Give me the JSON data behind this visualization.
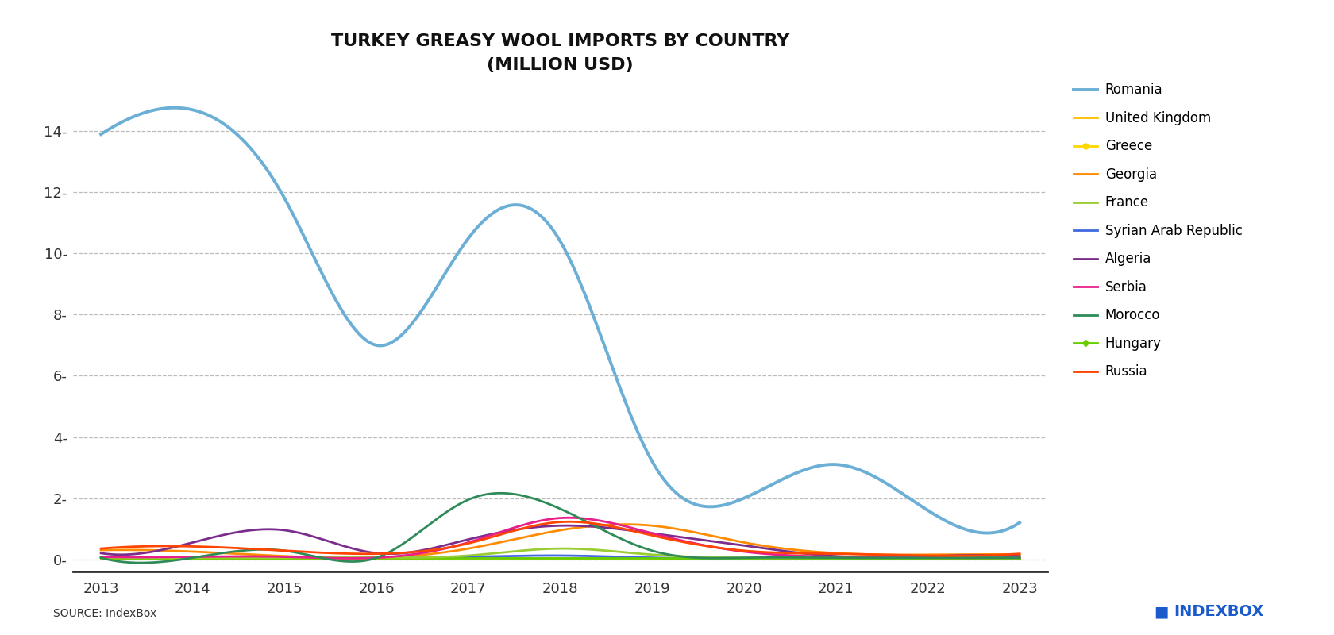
{
  "title_line1": "TURKEY GREASY WOOL IMPORTS BY COUNTRY",
  "title_line2": "(MILLION USD)",
  "years": [
    2013,
    2014,
    2015,
    2016,
    2017,
    2018,
    2019,
    2020,
    2021,
    2022,
    2023
  ],
  "series": {
    "Romania": {
      "color": "#6BAED6",
      "linewidth": 2.8,
      "zorder": 5,
      "values": [
        13.9,
        14.7,
        11.8,
        7.0,
        10.5,
        10.4,
        3.2,
        2.0,
        3.1,
        1.6,
        1.2
      ]
    },
    "United Kingdom": {
      "color": "#FFC000",
      "linewidth": 2.0,
      "zorder": 2,
      "values": [
        0.03,
        0.03,
        0.03,
        0.03,
        0.03,
        0.03,
        0.03,
        0.03,
        0.03,
        0.03,
        0.03
      ]
    },
    "Greece": {
      "color": "#FFD700",
      "linewidth": 2.0,
      "zorder": 2,
      "marker": "o",
      "markersize": 5,
      "values": [
        0.04,
        0.04,
        0.04,
        0.04,
        0.04,
        0.04,
        0.04,
        0.04,
        0.04,
        0.04,
        0.04
      ]
    },
    "Georgia": {
      "color": "#FF8C00",
      "linewidth": 2.0,
      "zorder": 3,
      "values": [
        0.3,
        0.25,
        0.1,
        0.05,
        0.35,
        0.95,
        1.1,
        0.55,
        0.2,
        0.15,
        0.15
      ]
    },
    "France": {
      "color": "#9ACD32",
      "linewidth": 2.0,
      "zorder": 3,
      "values": [
        0.05,
        0.05,
        0.05,
        0.05,
        0.12,
        0.35,
        0.15,
        0.05,
        0.05,
        0.05,
        0.05
      ]
    },
    "Syrian Arab Republic": {
      "color": "#4169E1",
      "linewidth": 2.0,
      "zorder": 2,
      "values": [
        0.08,
        0.05,
        0.05,
        0.05,
        0.08,
        0.12,
        0.05,
        0.02,
        0.02,
        0.02,
        0.02
      ]
    },
    "Algeria": {
      "color": "#7B2D8B",
      "linewidth": 2.0,
      "zorder": 3,
      "values": [
        0.2,
        0.55,
        0.95,
        0.2,
        0.65,
        1.1,
        0.85,
        0.45,
        0.1,
        0.1,
        0.1
      ]
    },
    "Serbia": {
      "color": "#E91E8C",
      "linewidth": 2.0,
      "zorder": 3,
      "values": [
        0.08,
        0.08,
        0.08,
        0.05,
        0.55,
        1.35,
        0.85,
        0.25,
        0.08,
        0.05,
        0.05
      ]
    },
    "Morocco": {
      "color": "#2E8B57",
      "linewidth": 2.0,
      "zorder": 3,
      "values": [
        0.05,
        0.05,
        0.28,
        0.05,
        1.95,
        1.65,
        0.28,
        0.05,
        0.05,
        0.05,
        0.05
      ]
    },
    "Hungary": {
      "color": "#66CD00",
      "linewidth": 2.0,
      "zorder": 2,
      "marker": "D",
      "markersize": 4,
      "values": [
        0.03,
        0.03,
        0.03,
        0.03,
        0.03,
        0.03,
        0.03,
        0.03,
        0.03,
        0.03,
        0.03
      ]
    },
    "Russia": {
      "color": "#FF4500",
      "linewidth": 2.0,
      "zorder": 3,
      "values": [
        0.35,
        0.42,
        0.28,
        0.18,
        0.52,
        1.22,
        0.78,
        0.28,
        0.18,
        0.12,
        0.18
      ]
    }
  },
  "ylim": [
    -0.4,
    15.8
  ],
  "yticks": [
    0,
    2,
    4,
    6,
    8,
    10,
    12,
    14
  ],
  "xlim": [
    2012.7,
    2023.3
  ],
  "background_color": "#FFFFFF",
  "grid_color": "#BBBBBB",
  "source_text": "SOURCE: IndexBox",
  "legend_fontsize": 12,
  "title_fontsize": 16,
  "tick_fontsize": 13
}
